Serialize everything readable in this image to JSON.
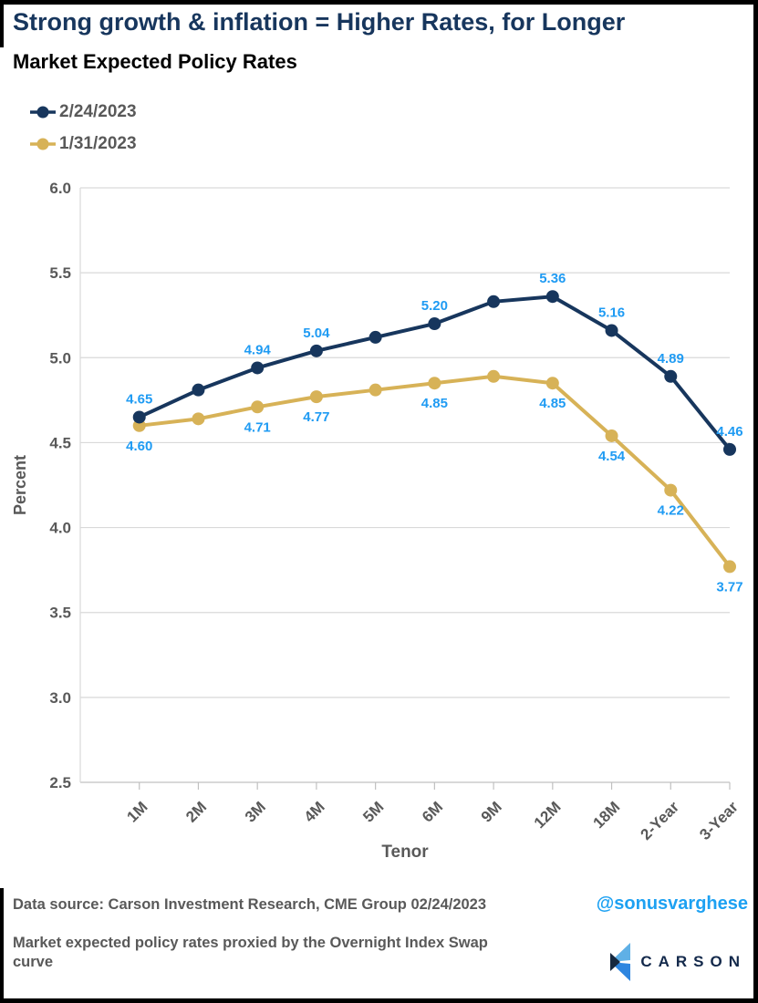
{
  "title": "Strong growth & inflation = Higher Rates, for Longer",
  "subtitle": "Market Expected Policy Rates",
  "legend": [
    {
      "label": "2/24/2023",
      "color": "#17365d"
    },
    {
      "label": "1/31/2023",
      "color": "#d7b257"
    }
  ],
  "chart_data": {
    "type": "line",
    "categories": [
      "1M",
      "2M",
      "3M",
      "4M",
      "5M",
      "6M",
      "9M",
      "12M",
      "18M",
      "2-Year",
      "3-Year"
    ],
    "series": [
      {
        "name": "2/24/2023",
        "color": "#17365d",
        "values": [
          4.65,
          4.81,
          4.94,
          5.04,
          5.12,
          5.2,
          5.33,
          5.36,
          5.16,
          4.89,
          4.46
        ],
        "point_labels": [
          "4.65",
          "",
          "4.94",
          "5.04",
          "",
          "5.20",
          "",
          "5.36",
          "5.16",
          "4.89",
          "4.46"
        ],
        "label_side": "above"
      },
      {
        "name": "1/31/2023",
        "color": "#d7b257",
        "values": [
          4.6,
          4.64,
          4.71,
          4.77,
          4.81,
          4.85,
          4.89,
          4.85,
          4.54,
          4.22,
          3.77
        ],
        "point_labels": [
          "4.60",
          "",
          "4.71",
          "4.77",
          "",
          "4.85",
          "",
          "4.85",
          "4.54",
          "4.22",
          "3.77"
        ],
        "label_side": "below"
      }
    ],
    "xlabel": "Tenor",
    "ylabel": "Percent",
    "ylim": [
      2.5,
      6.0
    ],
    "yticks": [
      "6.0",
      "5.5",
      "5.0",
      "4.5",
      "4.0",
      "3.5",
      "3.0",
      "2.5"
    ],
    "grid": true,
    "legend_position": "top-left",
    "label_color": "#1f9bf3",
    "axis_text_color": "#595959",
    "grid_color": "#d9d9d9"
  },
  "footer": {
    "source": "Data source: Carson Investment Research, CME Group   02/24/2023",
    "handle": "@sonusvarghese",
    "note": "Market expected policy rates proxied by the Overnight Index Swap curve",
    "logo_text": "CARSON",
    "logo_colors": {
      "light": "#5fb0e6",
      "mid": "#2e86e0",
      "dark": "#16283f"
    }
  }
}
